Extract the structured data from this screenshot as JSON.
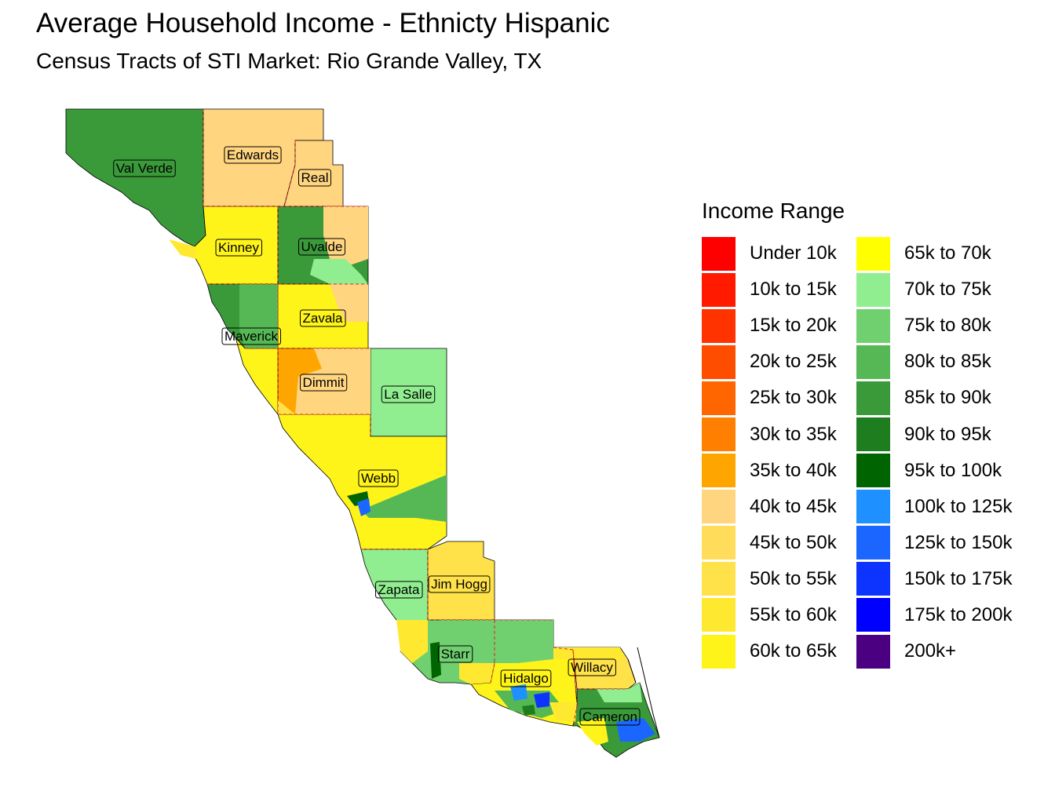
{
  "title": "Average Household Income - Ethnicty Hispanic",
  "subtitle": "Census Tracts of STI Market: Rio Grande Valley, TX",
  "legend": {
    "title": "Income Range",
    "items": [
      {
        "label": "Under 10k",
        "color": "#ff0000"
      },
      {
        "label": "10k to 15k",
        "color": "#ff1a00"
      },
      {
        "label": "15k to 20k",
        "color": "#ff3300"
      },
      {
        "label": "20k to 25k",
        "color": "#ff4d00"
      },
      {
        "label": "25k to 30k",
        "color": "#ff6600"
      },
      {
        "label": "30k to 35k",
        "color": "#ff8000"
      },
      {
        "label": "35k to 40k",
        "color": "#ffa500"
      },
      {
        "label": "40k to 45k",
        "color": "#ffd580"
      },
      {
        "label": "45k to 50k",
        "color": "#ffdc5a"
      },
      {
        "label": "50k to 55k",
        "color": "#ffe24a"
      },
      {
        "label": "55k to 60k",
        "color": "#ffe830"
      },
      {
        "label": "60k to 65k",
        "color": "#fff41a"
      },
      {
        "label": "65k to 70k",
        "color": "#ffff00"
      },
      {
        "label": "70k to 75k",
        "color": "#90ee90"
      },
      {
        "label": "75k to 80k",
        "color": "#70d070"
      },
      {
        "label": "80k to 85k",
        "color": "#55b855"
      },
      {
        "label": "85k to 90k",
        "color": "#3a9a3a"
      },
      {
        "label": "90k to 95k",
        "color": "#1e7d1e"
      },
      {
        "label": "95k to 100k",
        "color": "#006400"
      },
      {
        "label": "100k to 125k",
        "color": "#1e90ff"
      },
      {
        "label": "125k to 150k",
        "color": "#1a66ff"
      },
      {
        "label": "150k to 175k",
        "color": "#0d33ff"
      },
      {
        "label": "175k to 200k",
        "color": "#0000ff"
      },
      {
        "label": "200k+",
        "color": "#4b0082"
      }
    ]
  },
  "counties": [
    {
      "name": "Val Verde",
      "income_range": "85k to 90k"
    },
    {
      "name": "Edwards",
      "income_range": "40k to 45k"
    },
    {
      "name": "Real",
      "income_range": "40k to 45k"
    },
    {
      "name": "Kinney",
      "income_range": "60k to 65k"
    },
    {
      "name": "Uvalde",
      "income_range": "85k to 90k"
    },
    {
      "name": "Maverick",
      "income_range": "85k to 90k"
    },
    {
      "name": "Zavala",
      "income_range": "60k to 65k"
    },
    {
      "name": "Dimmit",
      "income_range": "35k to 40k"
    },
    {
      "name": "La Salle",
      "income_range": "70k to 75k"
    },
    {
      "name": "Webb",
      "income_range": "60k to 65k"
    },
    {
      "name": "Zapata",
      "income_range": "70k to 75k"
    },
    {
      "name": "Jim Hogg",
      "income_range": "50k to 55k"
    },
    {
      "name": "Starr",
      "income_range": "75k to 80k"
    },
    {
      "name": "Hidalgo",
      "income_range": "60k to 65k"
    },
    {
      "name": "Willacy",
      "income_range": "50k to 55k"
    },
    {
      "name": "Cameron",
      "income_range": "85k to 90k"
    }
  ]
}
